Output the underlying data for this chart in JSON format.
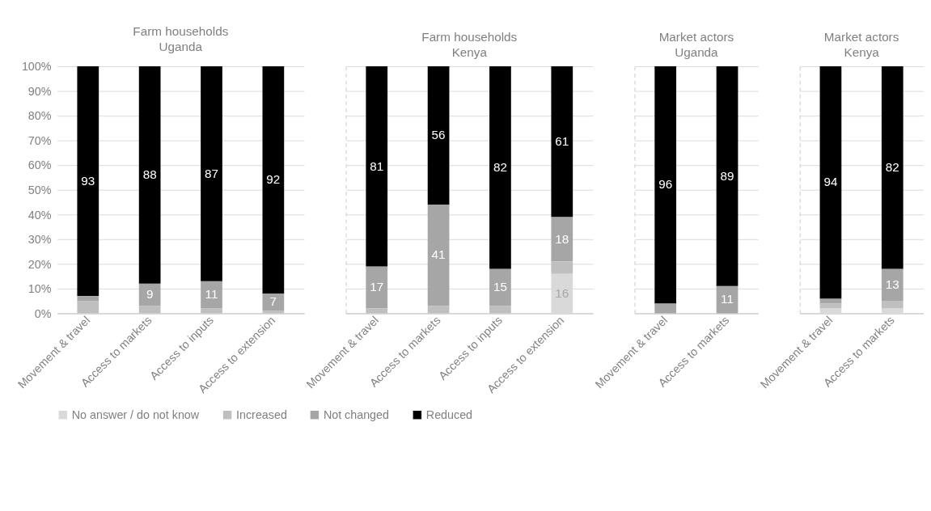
{
  "chart_data": [
    {
      "type": "bar",
      "title": "Farm households\nUganda",
      "stacked": true,
      "categories": [
        "Movement & travel",
        "Access to markets",
        "Access to inputs",
        "Access to extension"
      ],
      "ylim": [
        0,
        100
      ],
      "yticks": [
        {
          "value": 0,
          "label": "0%"
        },
        {
          "value": 10,
          "label": "10%"
        },
        {
          "value": 20,
          "label": "20%"
        },
        {
          "value": 30,
          "label": "30%"
        },
        {
          "value": 40,
          "label": "40%"
        },
        {
          "value": 50,
          "label": "50%"
        },
        {
          "value": 60,
          "label": "60%"
        },
        {
          "value": 70,
          "label": "70%"
        },
        {
          "value": 80,
          "label": "80%"
        },
        {
          "value": 90,
          "label": "90%"
        },
        {
          "value": 100,
          "label": "100%"
        }
      ],
      "grid": "y",
      "legend": "bottom",
      "series": [
        {
          "name": "No answer / do not know",
          "color": "#d9d9d9",
          "values": [
            0,
            0,
            0,
            0
          ],
          "value_labels": [
            null,
            null,
            null,
            null
          ]
        },
        {
          "name": "Increased",
          "color": "#bfbfbf",
          "values": [
            5,
            3,
            2,
            1
          ],
          "value_labels": [
            null,
            null,
            null,
            null
          ]
        },
        {
          "name": "Not changed",
          "color": "#a6a6a6",
          "values": [
            2,
            9,
            11,
            7
          ],
          "value_labels": [
            null,
            "9",
            "11",
            "7"
          ]
        },
        {
          "name": "Reduced",
          "color": "#000000",
          "values": [
            93,
            88,
            87,
            92
          ],
          "value_labels": [
            "93",
            "88",
            "87",
            "92"
          ]
        }
      ]
    },
    {
      "type": "bar",
      "title": "Farm households\nKenya",
      "stacked": true,
      "categories": [
        "Movement & travel",
        "Access to markets",
        "Access to inputs",
        "Access to extension"
      ],
      "ylim": [
        0,
        100
      ],
      "yticks": [
        0,
        10,
        20,
        30,
        40,
        50,
        60,
        70,
        80,
        90,
        100
      ],
      "grid": "y",
      "tick_labels": "x",
      "series": [
        {
          "color": "#d9d9d9",
          "values": [
            0,
            0,
            0,
            16
          ],
          "value_labels": [
            null,
            null,
            null,
            "16"
          ]
        },
        {
          "color": "#bfbfbf",
          "values": [
            2,
            3,
            3,
            5
          ],
          "value_labels": [
            null,
            null,
            null,
            null
          ]
        },
        {
          "color": "#a6a6a6",
          "values": [
            17,
            41,
            15,
            18
          ],
          "value_labels": [
            "17",
            "41",
            "15",
            "18"
          ]
        },
        {
          "color": "#000000",
          "values": [
            81,
            56,
            82,
            61
          ],
          "value_labels": [
            "81",
            "56",
            "82",
            "61"
          ]
        }
      ]
    },
    {
      "type": "bar",
      "title": "Market actors\nUganda",
      "stacked": true,
      "categories": [
        "Movement & travel",
        "Access to markets"
      ],
      "ylim": [
        0,
        100
      ],
      "yticks": [
        0,
        10,
        20,
        30,
        40,
        50,
        60,
        70,
        80,
        90,
        100
      ],
      "grid": "y",
      "tick_labels": "x",
      "series": [
        {
          "color": "#d9d9d9",
          "values": [
            0,
            0
          ],
          "value_labels": [
            null,
            null
          ]
        },
        {
          "color": "#bfbfbf",
          "values": [
            0,
            0
          ],
          "value_labels": [
            null,
            null
          ]
        },
        {
          "color": "#a6a6a6",
          "values": [
            4,
            11
          ],
          "value_labels": [
            null,
            "11"
          ]
        },
        {
          "color": "#000000",
          "values": [
            96,
            89
          ],
          "value_labels": [
            "96",
            "89"
          ]
        }
      ]
    },
    {
      "type": "bar",
      "title": "Market actors\nKenya",
      "stacked": true,
      "categories": [
        "Movement & travel",
        "Access to markets"
      ],
      "ylim": [
        0,
        100
      ],
      "yticks": [
        0,
        10,
        20,
        30,
        40,
        50,
        60,
        70,
        80,
        90,
        100
      ],
      "grid": "y",
      "tick_labels": "x",
      "series": [
        {
          "color": "#d9d9d9",
          "values": [
            2,
            2
          ],
          "value_labels": [
            null,
            null
          ]
        },
        {
          "color": "#bfbfbf",
          "values": [
            2,
            3
          ],
          "value_labels": [
            null,
            null
          ]
        },
        {
          "color": "#a6a6a6",
          "values": [
            2,
            13
          ],
          "value_labels": [
            null,
            "13"
          ]
        },
        {
          "color": "#000000",
          "values": [
            94,
            82
          ],
          "value_labels": [
            "94",
            "82"
          ]
        }
      ]
    }
  ]
}
